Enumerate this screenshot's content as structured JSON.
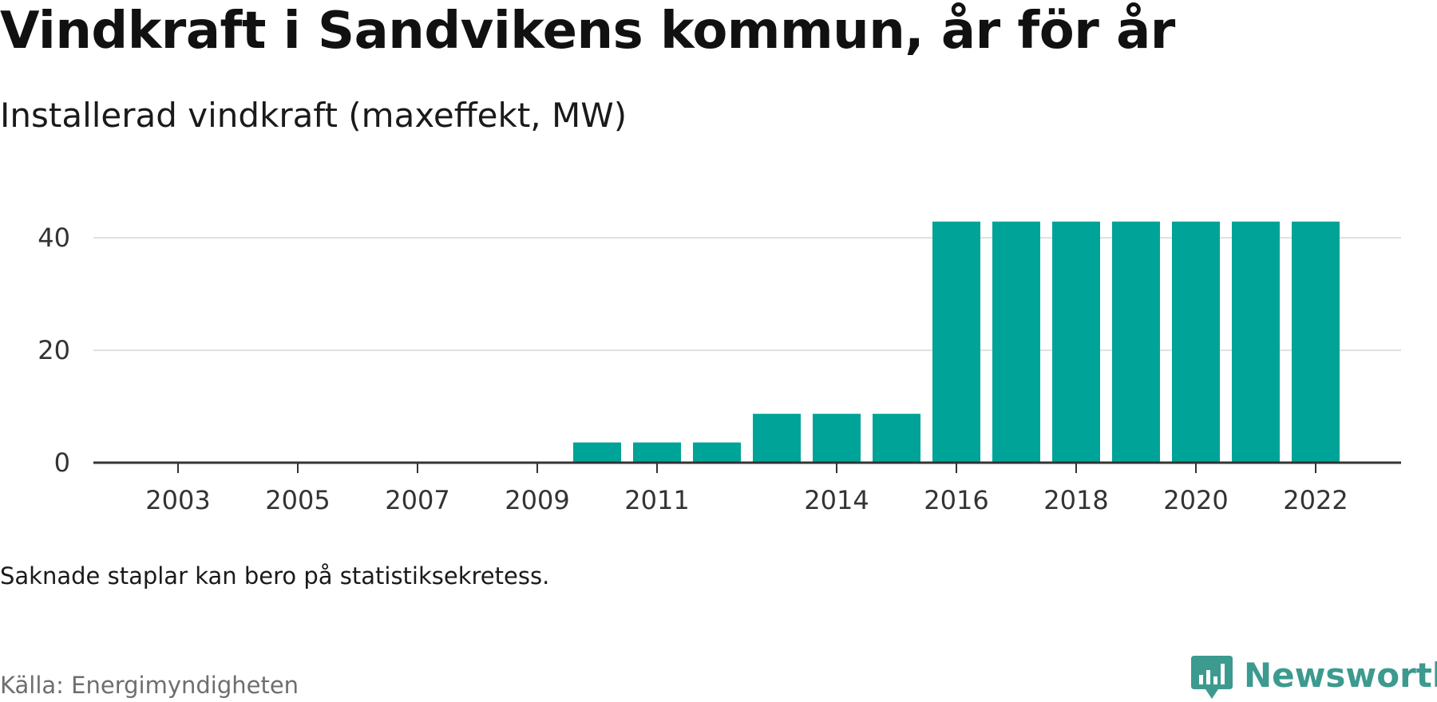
{
  "header": {
    "title": "Vindkraft i Sandvikens kommun, år för år",
    "subtitle": "Installerad vindkraft (maxeffekt, MW)"
  },
  "footer": {
    "note": "Saknade staplar kan bero på statistiksekretess.",
    "source": "Källa: Energimyndigheten",
    "brand": "Newsworthy",
    "brand_icon": "newsworthy-logo-icon"
  },
  "colors": {
    "bar": "#00a398",
    "grid": "#e0e0e0",
    "axis": "#333333",
    "brand": "#3c9a8f"
  },
  "chart_data": {
    "type": "bar",
    "title": "Vindkraft i Sandvikens kommun, år för år",
    "subtitle": "Installerad vindkraft (maxeffekt, MW)",
    "xlabel": "",
    "ylabel": "",
    "categories": [
      "2002",
      "2003",
      "2004",
      "2005",
      "2006",
      "2007",
      "2008",
      "2009",
      "2010",
      "2011",
      "2012",
      "2013",
      "2014",
      "2015",
      "2016",
      "2017",
      "2018",
      "2019",
      "2020",
      "2021",
      "2022"
    ],
    "values": [
      null,
      null,
      null,
      null,
      null,
      null,
      null,
      null,
      3.6,
      3.6,
      3.6,
      8.7,
      8.7,
      8.7,
      42.9,
      42.9,
      42.9,
      42.9,
      42.9,
      42.9,
      42.9
    ],
    "x_tick_labels": [
      "2003",
      "2005",
      "2007",
      "2009",
      "2011",
      "2014",
      "2016",
      "2018",
      "2020",
      "2022"
    ],
    "y_ticks": [
      0,
      20,
      40
    ],
    "ylim": [
      0,
      44
    ],
    "grid": true,
    "legend": "none"
  }
}
